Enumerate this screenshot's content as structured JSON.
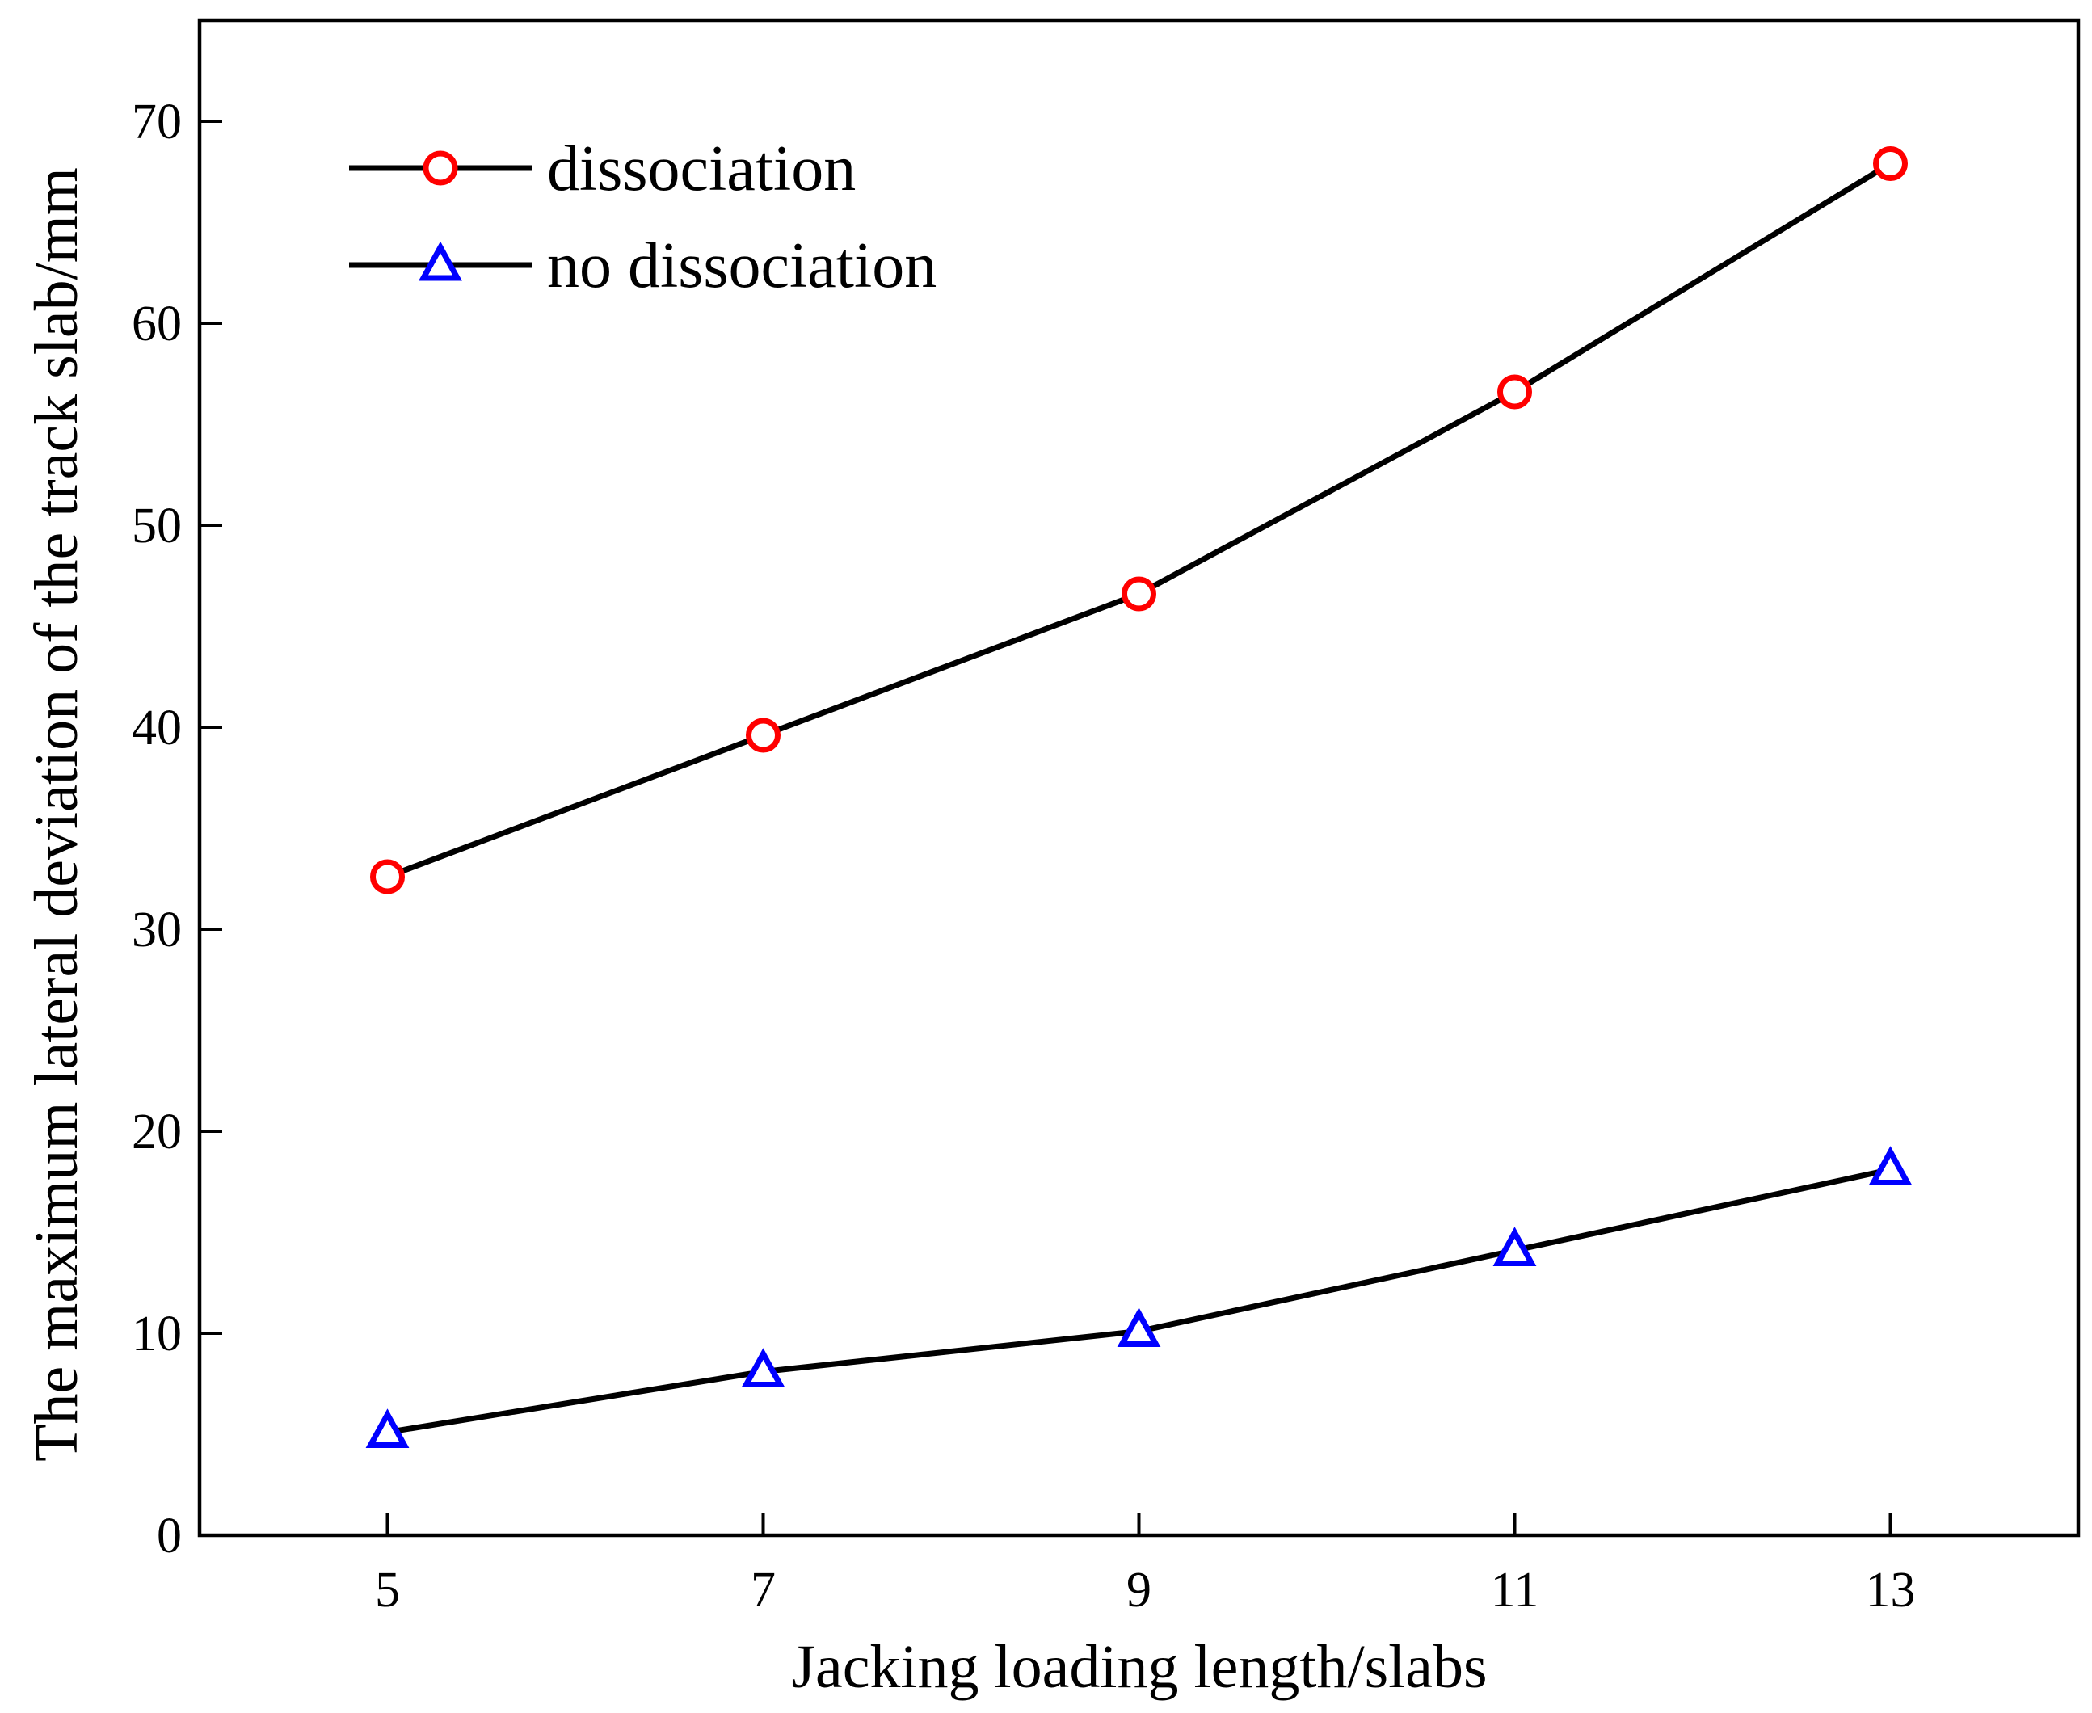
{
  "chart_data": {
    "type": "line",
    "title": "",
    "xlabel": "Jacking loading length/slabs",
    "ylabel": "The maximum lateral deviation of the track slab/mm",
    "x": [
      5,
      7,
      9,
      11,
      13
    ],
    "xticks": [
      "5",
      "7",
      "9",
      "11",
      "13"
    ],
    "yticks": [
      "0",
      "10",
      "20",
      "30",
      "40",
      "50",
      "60",
      "70"
    ],
    "xlim": [
      4,
      14
    ],
    "ylim": [
      0,
      75
    ],
    "grid": false,
    "legend_position": "top-left",
    "series": [
      {
        "name": "dissociation",
        "marker": "circle",
        "color": "#ff0000",
        "line_color": "#000000",
        "values": [
          32.6,
          39.6,
          46.6,
          56.6,
          67.9
        ]
      },
      {
        "name": "no dissociation",
        "marker": "triangle",
        "color": "#0000ff",
        "line_color": "#000000",
        "values": [
          5.1,
          8.1,
          10.1,
          14.1,
          18.1
        ]
      }
    ]
  }
}
